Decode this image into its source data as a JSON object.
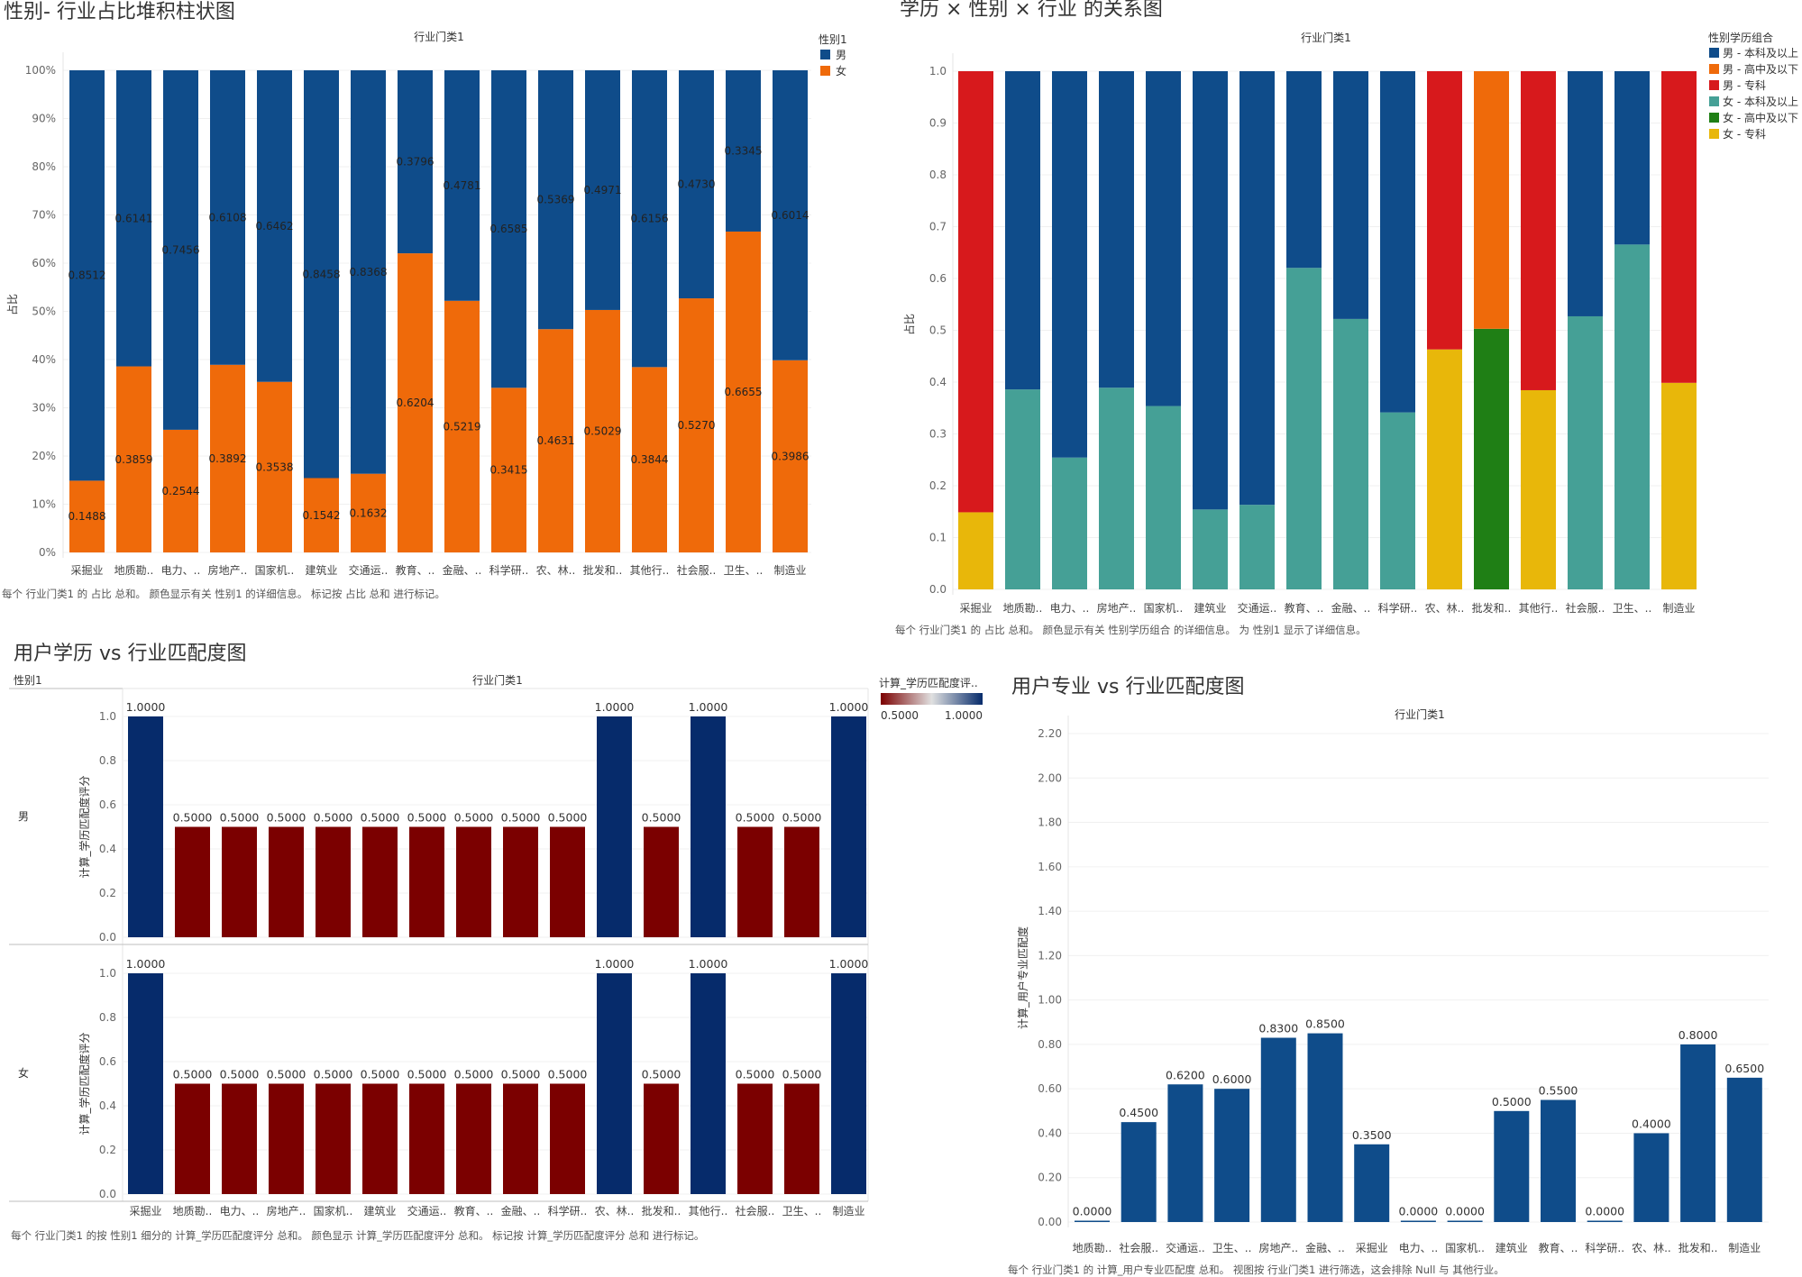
{
  "chart_data": [
    {
      "id": "gender_industry",
      "type": "bar",
      "stacked": true,
      "title": "性别- 行业占比堆积柱状图",
      "column_header": "行业门类1",
      "xlabel": "",
      "ylabel": "占比",
      "ylim": [
        0,
        1
      ],
      "yticks": [
        "0%",
        "10%",
        "20%",
        "30%",
        "40%",
        "50%",
        "60%",
        "70%",
        "80%",
        "90%",
        "100%"
      ],
      "grid": true,
      "legend": {
        "title": "性别1",
        "placement": "top-right",
        "entries": [
          {
            "name": "男",
            "color": "#0f4c8a"
          },
          {
            "name": "女",
            "color": "#ef6a0a"
          }
        ]
      },
      "categories": [
        "采掘业",
        "地质勘..",
        "电力、..",
        "房地产..",
        "国家机..",
        "建筑业",
        "交通运..",
        "教育、..",
        "金融、..",
        "科学研..",
        "农、林..",
        "批发和..",
        "其他行..",
        "社会服..",
        "卫生、..",
        "制造业"
      ],
      "series": [
        {
          "name": "女",
          "color": "#ef6a0a",
          "values": [
            0.1488,
            0.3859,
            0.2544,
            0.3892,
            0.3538,
            0.1542,
            0.1632,
            0.6204,
            0.5219,
            0.3415,
            0.4631,
            0.5029,
            0.3844,
            0.527,
            0.6655,
            0.3986
          ]
        },
        {
          "name": "男",
          "color": "#0f4c8a",
          "values": [
            0.8512,
            0.6141,
            0.7456,
            0.6108,
            0.6462,
            0.8458,
            0.8368,
            0.3796,
            0.4781,
            0.6585,
            0.5369,
            0.4971,
            0.6156,
            0.473,
            0.3345,
            0.6014
          ]
        }
      ],
      "footnote": "每个 行业门类1 的 占比 总和。 颜色显示有关 性别1 的详细信息。 标记按 占比 总和 进行标记。"
    },
    {
      "id": "edu_gender_industry",
      "type": "bar",
      "stacked": true,
      "title": "学历 × 性别 × 行业 的关系图",
      "column_header": "行业门类1",
      "xlabel": "",
      "ylabel": "占比",
      "ylim": [
        0,
        1
      ],
      "yticks": [
        "0.0",
        "0.1",
        "0.2",
        "0.3",
        "0.4",
        "0.5",
        "0.6",
        "0.7",
        "0.8",
        "0.9",
        "1.0"
      ],
      "grid": true,
      "legend": {
        "title": "性别学历组合",
        "placement": "top-right",
        "entries": [
          {
            "name": "男 - 本科及以上",
            "color": "#0f4c8a"
          },
          {
            "name": "男 - 高中及以下",
            "color": "#ef6a0a"
          },
          {
            "name": "男 - 专科",
            "color": "#d7191c"
          },
          {
            "name": "女 - 本科及以上",
            "color": "#45a096"
          },
          {
            "name": "女 - 高中及以下",
            "color": "#1f7f15"
          },
          {
            "name": "女 - 专科",
            "color": "#e8b70a"
          }
        ]
      },
      "categories": [
        "采掘业",
        "地质勘..",
        "电力、..",
        "房地产..",
        "国家机..",
        "建筑业",
        "交通运..",
        "教育、..",
        "金融、..",
        "科学研..",
        "农、林..",
        "批发和..",
        "其他行..",
        "社会服..",
        "卫生、..",
        "制造业"
      ],
      "stacks": [
        [
          {
            "name": "女 - 专科",
            "value": 0.1488
          },
          {
            "name": "男 - 专科",
            "value": 0.8512
          }
        ],
        [
          {
            "name": "女 - 本科及以上",
            "value": 0.3859
          },
          {
            "name": "男 - 本科及以上",
            "value": 0.6141
          }
        ],
        [
          {
            "name": "女 - 本科及以上",
            "value": 0.2544
          },
          {
            "name": "男 - 本科及以上",
            "value": 0.7456
          }
        ],
        [
          {
            "name": "女 - 本科及以上",
            "value": 0.3892
          },
          {
            "name": "男 - 本科及以上",
            "value": 0.6108
          }
        ],
        [
          {
            "name": "女 - 本科及以上",
            "value": 0.3538
          },
          {
            "name": "男 - 本科及以上",
            "value": 0.6462
          }
        ],
        [
          {
            "name": "女 - 本科及以上",
            "value": 0.1542
          },
          {
            "name": "男 - 本科及以上",
            "value": 0.8458
          }
        ],
        [
          {
            "name": "女 - 本科及以上",
            "value": 0.1632
          },
          {
            "name": "男 - 本科及以上",
            "value": 0.8368
          }
        ],
        [
          {
            "name": "女 - 本科及以上",
            "value": 0.6204
          },
          {
            "name": "男 - 本科及以上",
            "value": 0.3796
          }
        ],
        [
          {
            "name": "女 - 本科及以上",
            "value": 0.5219
          },
          {
            "name": "男 - 本科及以上",
            "value": 0.4781
          }
        ],
        [
          {
            "name": "女 - 本科及以上",
            "value": 0.3415
          },
          {
            "name": "男 - 本科及以上",
            "value": 0.6585
          }
        ],
        [
          {
            "name": "女 - 专科",
            "value": 0.4631
          },
          {
            "name": "男 - 专科",
            "value": 0.5369
          }
        ],
        [
          {
            "name": "女 - 高中及以下",
            "value": 0.5029
          },
          {
            "name": "男 - 高中及以下",
            "value": 0.4971
          }
        ],
        [
          {
            "name": "女 - 专科",
            "value": 0.3844
          },
          {
            "name": "男 - 专科",
            "value": 0.6156
          }
        ],
        [
          {
            "name": "女 - 本科及以上",
            "value": 0.527
          },
          {
            "name": "男 - 本科及以上",
            "value": 0.473
          }
        ],
        [
          {
            "name": "女 - 本科及以上",
            "value": 0.6655
          },
          {
            "name": "男 - 本科及以上",
            "value": 0.3345
          }
        ],
        [
          {
            "name": "女 - 专科",
            "value": 0.3986
          },
          {
            "name": "男 - 专科",
            "value": 0.6014
          }
        ]
      ],
      "footnote": "每个 行业门类1 的 占比 总和。 颜色显示有关 性别学历组合 的详细信息。 为 性别1 显示了详细信息。"
    },
    {
      "id": "edu_match",
      "type": "bar",
      "title": "用户学历 vs 行业匹配度图",
      "column_header": "行业门类1",
      "row_header": "性别1",
      "xlabel": "",
      "ylabel": "计算_学历匹配度评分",
      "ylim": [
        0,
        1.1
      ],
      "yticks": [
        "0.0",
        "0.2",
        "0.4",
        "0.6",
        "0.8",
        "1.0"
      ],
      "grid": true,
      "color_legend": {
        "title": "计算_学历匹配度评..",
        "min_label": "0.5000",
        "max_label": "1.0000",
        "low_color": "#7b0000",
        "mid_color": "#e0e0e0",
        "high_color": "#062b6b",
        "placement": "top-right"
      },
      "categories": [
        "采掘业",
        "地质勘..",
        "电力、..",
        "房地产..",
        "国家机..",
        "建筑业",
        "交通运..",
        "教育、..",
        "金融、..",
        "科学研..",
        "农、林..",
        "批发和..",
        "其他行..",
        "社会服..",
        "卫生、..",
        "制造业"
      ],
      "panels": [
        {
          "row": "男",
          "values": [
            1.0,
            0.5,
            0.5,
            0.5,
            0.5,
            0.5,
            0.5,
            0.5,
            0.5,
            0.5,
            1.0,
            0.5,
            1.0,
            0.5,
            0.5,
            1.0
          ]
        },
        {
          "row": "女",
          "values": [
            1.0,
            0.5,
            0.5,
            0.5,
            0.5,
            0.5,
            0.5,
            0.5,
            0.5,
            0.5,
            1.0,
            0.5,
            1.0,
            0.5,
            0.5,
            1.0
          ]
        }
      ],
      "footnote": "每个 行业门类1 的按 性别1 细分的 计算_学历匹配度评分 总和。 颜色显示 计算_学历匹配度评分 总和。 标记按 计算_学历匹配度评分 总和 进行标记。"
    },
    {
      "id": "major_match",
      "type": "bar",
      "title": "用户专业 vs 行业匹配度图",
      "column_header": "行业门类1",
      "xlabel": "",
      "ylabel": "计算_用户专业匹配度",
      "ylim": [
        0,
        2.2
      ],
      "yticks": [
        "0.00",
        "0.20",
        "0.40",
        "0.60",
        "0.80",
        "1.00",
        "1.20",
        "1.40",
        "1.60",
        "1.80",
        "2.00",
        "2.20"
      ],
      "grid": true,
      "color": "#0f4c8a",
      "categories": [
        "地质勘..",
        "社会服..",
        "交通运..",
        "卫生、..",
        "房地产..",
        "金融、..",
        "采掘业",
        "电力、..",
        "国家机..",
        "建筑业",
        "教育、..",
        "科学研..",
        "农、林..",
        "批发和..",
        "制造业"
      ],
      "values": [
        0.0,
        0.45,
        0.62,
        0.6,
        0.83,
        0.85,
        0.35,
        0.0,
        0.0,
        0.5,
        0.55,
        0.0,
        0.4,
        0.8,
        0.65
      ],
      "footnote": "每个 行业门类1 的 计算_用户专业匹配度 总和。 视图按 行业门类1 进行筛选，这会排除 Null 与 其他行业。"
    }
  ]
}
